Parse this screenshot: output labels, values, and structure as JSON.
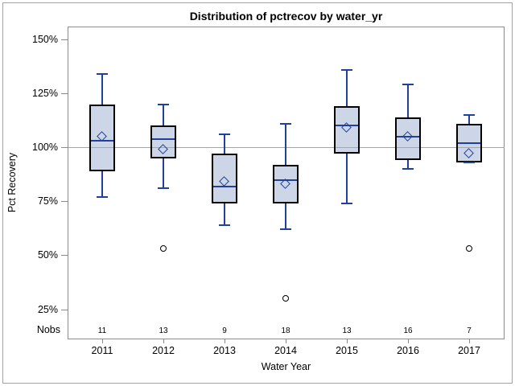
{
  "chart_data": {
    "type": "boxplot",
    "title": "Distribution of pctrecov by water_yr",
    "xlabel": "Water Year",
    "ylabel": "Pct Recovery",
    "nobs_label": "Nobs",
    "categories": [
      "2011",
      "2012",
      "2013",
      "2014",
      "2015",
      "2016",
      "2017"
    ],
    "nobs": [
      11,
      13,
      9,
      18,
      13,
      16,
      7
    ],
    "y_ticks": [
      {
        "value": 150,
        "label": "150%"
      },
      {
        "value": 125,
        "label": "125%"
      },
      {
        "value": 100,
        "label": "100%"
      },
      {
        "value": 75,
        "label": "75%"
      },
      {
        "value": 50,
        "label": "50%"
      },
      {
        "value": 25,
        "label": "25%"
      }
    ],
    "ylim": [
      11,
      156
    ],
    "grid": false,
    "reference_line": 100,
    "series": [
      {
        "category": "2011",
        "whisker_low": 77,
        "q1": 89,
        "median": 103,
        "mean": 105,
        "q3": 120,
        "whisker_high": 134,
        "outliers": []
      },
      {
        "category": "2012",
        "whisker_low": 81,
        "q1": 95,
        "median": 104,
        "mean": 99,
        "q3": 110,
        "whisker_high": 120,
        "outliers": [
          53
        ]
      },
      {
        "category": "2013",
        "whisker_low": 64,
        "q1": 74,
        "median": 82,
        "mean": 84,
        "q3": 97,
        "whisker_high": 106,
        "outliers": []
      },
      {
        "category": "2014",
        "whisker_low": 62,
        "q1": 74,
        "median": 85,
        "mean": 83,
        "q3": 92,
        "whisker_high": 111,
        "outliers": [
          30
        ]
      },
      {
        "category": "2015",
        "whisker_low": 74,
        "q1": 97,
        "median": 110,
        "mean": 109,
        "q3": 119,
        "whisker_high": 136,
        "outliers": []
      },
      {
        "category": "2016",
        "whisker_low": 90,
        "q1": 94,
        "median": 105,
        "mean": 105,
        "q3": 114,
        "whisker_high": 129,
        "outliers": []
      },
      {
        "category": "2017",
        "whisker_low": 93,
        "q1": 93,
        "median": 102,
        "mean": 97,
        "q3": 111,
        "whisker_high": 115,
        "outliers": [
          53
        ]
      }
    ],
    "colors": {
      "box_fill": "#ccd6e7",
      "box_border": "#000000",
      "whisker": "#21409a",
      "median": "#21409a",
      "mean_marker": "#21409a",
      "outlier": "#000000",
      "reference_line": "#a6a6a6",
      "axis": "#8b8b8b"
    }
  }
}
